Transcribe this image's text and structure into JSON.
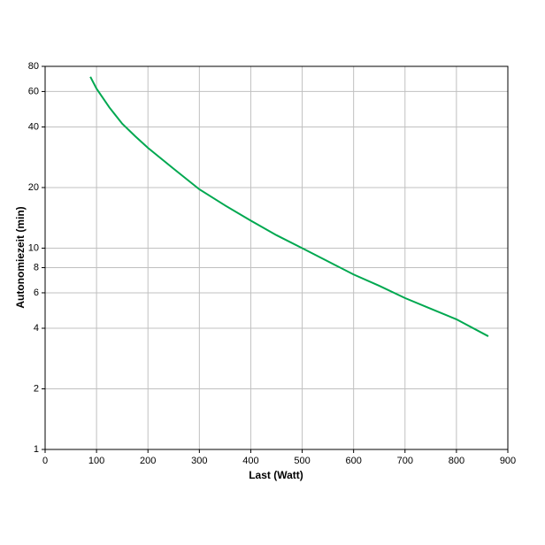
{
  "chart_data": {
    "type": "line",
    "xlabel": "Last (Watt)",
    "ylabel": "Autonomiezeit (min)",
    "x": [
      88,
      100,
      125,
      150,
      175,
      200,
      250,
      300,
      350,
      400,
      450,
      500,
      550,
      600,
      650,
      700,
      750,
      800,
      862
    ],
    "series": [
      {
        "name": "Autonomiezeit",
        "color": "#00a850",
        "values": [
          71,
          62,
          50,
          41.5,
          36,
          31.5,
          24.8,
          19.6,
          16.3,
          13.7,
          11.6,
          10,
          8.6,
          7.4,
          6.5,
          5.65,
          5,
          4.43,
          3.65
        ]
      }
    ],
    "xlim": [
      0,
      900
    ],
    "xticks": [
      0,
      100,
      200,
      300,
      400,
      500,
      600,
      700,
      800,
      900
    ],
    "ylim": [
      1,
      80
    ],
    "yticks": [
      1,
      2,
      4,
      6,
      8,
      10,
      20,
      40,
      60,
      80
    ],
    "ylog": true,
    "grid": true
  }
}
